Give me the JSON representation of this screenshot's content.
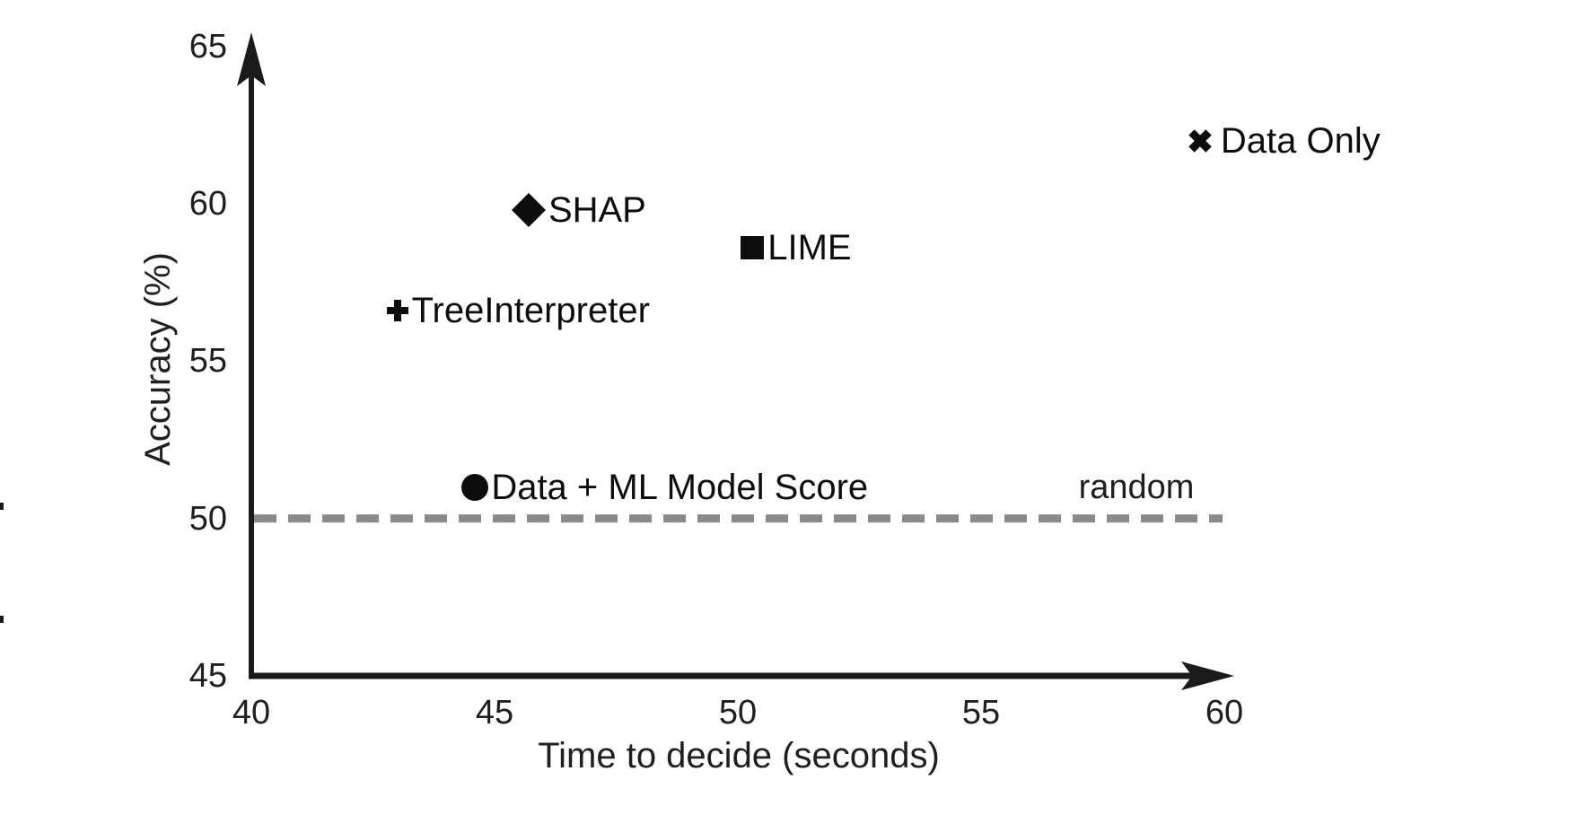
{
  "chart_data": {
    "type": "scatter",
    "title": "",
    "xlabel": "Time to decide (seconds)",
    "ylabel": "Accuracy (%)",
    "xlim": [
      40,
      60
    ],
    "ylim": [
      45,
      65
    ],
    "x_ticks": [
      "40",
      "45",
      "50",
      "55",
      "60"
    ],
    "y_ticks": [
      "45",
      "50",
      "55",
      "60",
      "65"
    ],
    "grid": "off",
    "legend": "none (labels placed next to markers)",
    "points": [
      {
        "label": "Data Only",
        "marker": "x-marker-icon",
        "x": 59.5,
        "y": 62.0
      },
      {
        "label": "SHAP",
        "marker": "diamond-marker-icon",
        "x": 45.7,
        "y": 59.8
      },
      {
        "label": "LIME",
        "marker": "square-marker-icon",
        "x": 50.3,
        "y": 58.6
      },
      {
        "label": "TreeInterpreter",
        "marker": "plus-marker-icon",
        "x": 43.0,
        "y": 56.6
      },
      {
        "label": "Data + ML Model Score",
        "marker": "circle-marker-icon",
        "x": 44.6,
        "y": 51.0
      }
    ],
    "reference_line": {
      "label": "random",
      "y": 50,
      "style": "dashed",
      "color": "#8a8a8a"
    },
    "colors": {
      "axis": "#1a1a1a",
      "marker": "#0d0d0d",
      "text": "#1f1f1f",
      "reference": "#8a8a8a"
    }
  }
}
